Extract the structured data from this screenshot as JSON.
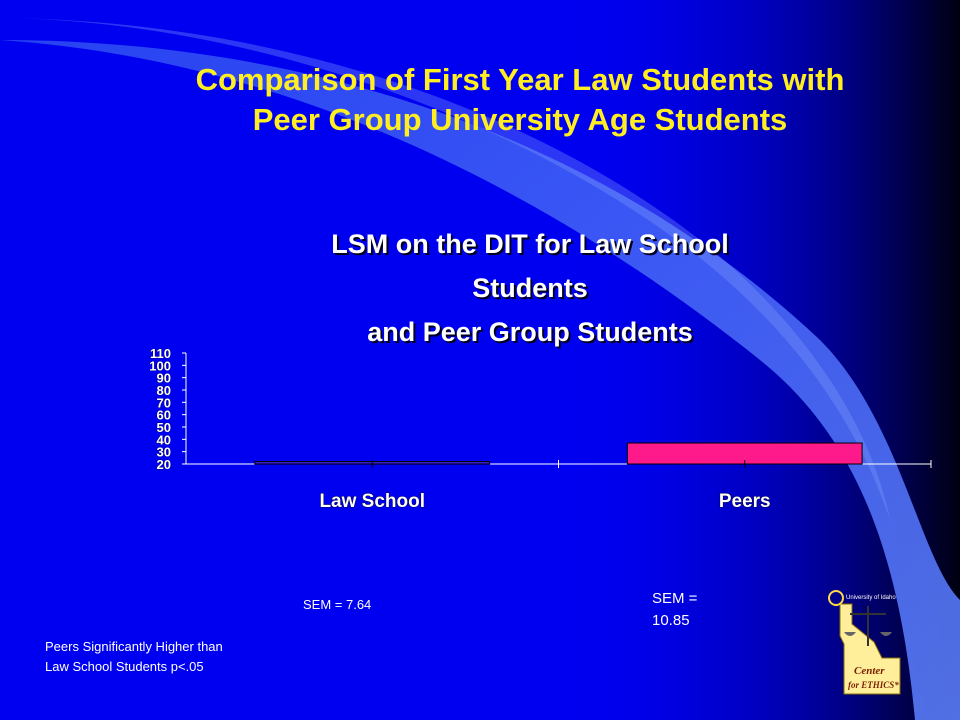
{
  "slide": {
    "title_line1": "Comparison of First Year Law Students with",
    "title_line2": "Peer Group University Age Students"
  },
  "chart_data": {
    "type": "bar",
    "title_lines": [
      "LSM on the DIT for Law School",
      "Students",
      "and Peer Group Students"
    ],
    "categories": [
      "Law School",
      "Peers"
    ],
    "values": [
      22,
      37
    ],
    "bar_colors": [
      "#3b1fd6",
      "#ff1a8c"
    ],
    "xlabel": "",
    "ylabel": "",
    "ylim": [
      20,
      110
    ],
    "yticks": [
      20,
      30,
      40,
      50,
      60,
      70,
      80,
      90,
      100,
      110
    ],
    "grid": false,
    "legend": "none"
  },
  "annotations": {
    "sem_law": "SEM = 7.64",
    "sem_peers_line1": "SEM =",
    "sem_peers_line2": "10.85",
    "note_line1": "Peers Significantly Higher than",
    "note_line2": "Law School Students  p<.05"
  },
  "logo": {
    "icon": "center-for-ethics-logo",
    "text_top": "University of Idaho",
    "text_main1": "Center",
    "text_main2": "for ETHICS*"
  },
  "colors": {
    "background": "#0000f0",
    "title": "#ffee22",
    "text": "#ffffff",
    "swoosh": "#4a6cf5"
  }
}
